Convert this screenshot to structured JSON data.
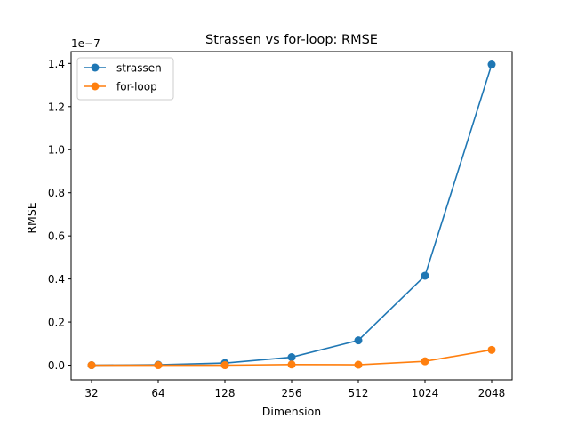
{
  "chart_data": {
    "type": "line",
    "title": "Strassen vs for-loop: RMSE",
    "xlabel": "Dimension",
    "ylabel": "RMSE",
    "y_offset_label": "1e−7",
    "categories": [
      "32",
      "64",
      "128",
      "256",
      "512",
      "1024",
      "2048"
    ],
    "y_tick_labels": [
      "0.0",
      "0.2",
      "0.4",
      "0.6",
      "0.8",
      "1.0",
      "1.2",
      "1.4"
    ],
    "y_ticks": [
      0.0,
      0.2,
      0.4,
      0.6,
      0.8,
      1.0,
      1.2,
      1.4
    ],
    "ylim": [
      -0.068,
      1.455
    ],
    "y_scale_note": "values in units of 1e-7",
    "grid": false,
    "legend_position": "upper-left",
    "series": [
      {
        "name": "strassen",
        "color": "#1f77b4",
        "values": [
          0.0,
          0.002,
          0.01,
          0.037,
          0.115,
          0.415,
          1.395
        ]
      },
      {
        "name": "for-loop",
        "color": "#ff7f0e",
        "values": [
          0.0,
          0.0,
          0.0,
          0.003,
          0.002,
          0.018,
          0.071
        ]
      }
    ]
  }
}
